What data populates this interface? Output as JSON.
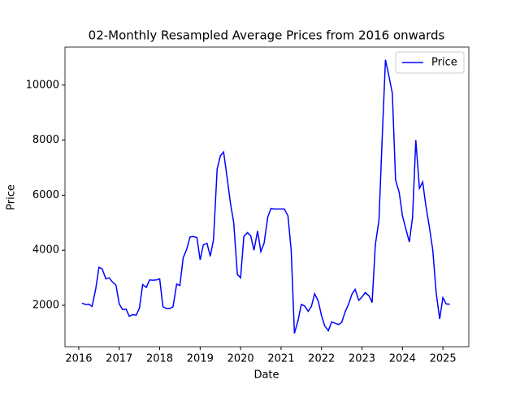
{
  "chart_data": {
    "type": "line",
    "title": "02-Monthly Resampled Average Prices from 2016 onwards",
    "x_label": "Date",
    "y_label": "Price",
    "x": [
      2016.08,
      2016.17,
      2016.25,
      2016.33,
      2016.42,
      2016.5,
      2016.58,
      2016.67,
      2016.75,
      2016.83,
      2016.92,
      2017.0,
      2017.08,
      2017.17,
      2017.25,
      2017.33,
      2017.42,
      2017.5,
      2017.58,
      2017.67,
      2017.75,
      2017.83,
      2017.92,
      2018.0,
      2018.08,
      2018.17,
      2018.25,
      2018.33,
      2018.42,
      2018.5,
      2018.58,
      2018.67,
      2018.75,
      2018.83,
      2018.92,
      2019.0,
      2019.08,
      2019.17,
      2019.25,
      2019.33,
      2019.42,
      2019.5,
      2019.58,
      2019.67,
      2019.75,
      2019.83,
      2019.92,
      2020.0,
      2020.08,
      2020.17,
      2020.25,
      2020.33,
      2020.42,
      2020.5,
      2020.58,
      2020.67,
      2020.75,
      2020.83,
      2020.92,
      2021.0,
      2021.08,
      2021.17,
      2021.25,
      2021.33,
      2021.42,
      2021.5,
      2021.58,
      2021.67,
      2021.75,
      2021.83,
      2021.92,
      2022.0,
      2022.08,
      2022.17,
      2022.25,
      2022.33,
      2022.42,
      2022.5,
      2022.58,
      2022.67,
      2022.75,
      2022.83,
      2022.92,
      2023.0,
      2023.08,
      2023.17,
      2023.25,
      2023.33,
      2023.42,
      2023.5,
      2023.58,
      2023.67,
      2023.75,
      2023.83,
      2023.92,
      2024.0,
      2024.08,
      2024.17,
      2024.25,
      2024.33,
      2024.42,
      2024.5,
      2024.58,
      2024.67,
      2024.75,
      2024.83,
      2024.92,
      2025.0,
      2025.08,
      2025.17
    ],
    "series": [
      {
        "name": "Price",
        "color": "#0000ff",
        "values": [
          2080,
          2030,
          2040,
          1960,
          2600,
          3380,
          3320,
          2960,
          3000,
          2850,
          2730,
          2050,
          1850,
          1860,
          1600,
          1660,
          1640,
          1900,
          2750,
          2650,
          2920,
          2910,
          2920,
          2960,
          1950,
          1880,
          1880,
          1950,
          2770,
          2720,
          3720,
          4050,
          4480,
          4500,
          4460,
          3650,
          4200,
          4250,
          3780,
          4380,
          6950,
          7430,
          7570,
          6600,
          5700,
          5000,
          3120,
          3000,
          4500,
          4640,
          4520,
          4000,
          4700,
          3950,
          4250,
          5200,
          5520,
          5500,
          5500,
          5500,
          5500,
          5250,
          4000,
          980,
          1450,
          2030,
          1980,
          1780,
          1960,
          2420,
          2150,
          1620,
          1250,
          1080,
          1400,
          1350,
          1300,
          1380,
          1750,
          2050,
          2400,
          2580,
          2180,
          2300,
          2460,
          2350,
          2100,
          4200,
          5100,
          8100,
          10920,
          10300,
          9700,
          6550,
          6100,
          5250,
          4800,
          4300,
          5200,
          8000,
          6250,
          6480,
          5600,
          4800,
          4000,
          2500,
          1500,
          2280,
          2050,
          2040
        ]
      }
    ],
    "xlim": [
      2015.66,
      2025.64
    ],
    "xticks": [
      2016,
      2017,
      2018,
      2019,
      2020,
      2021,
      2022,
      2023,
      2024,
      2025
    ],
    "ylim": [
      495,
      11380
    ],
    "yticks": [
      2000,
      4000,
      6000,
      8000,
      10000
    ],
    "legend": "upper right"
  }
}
